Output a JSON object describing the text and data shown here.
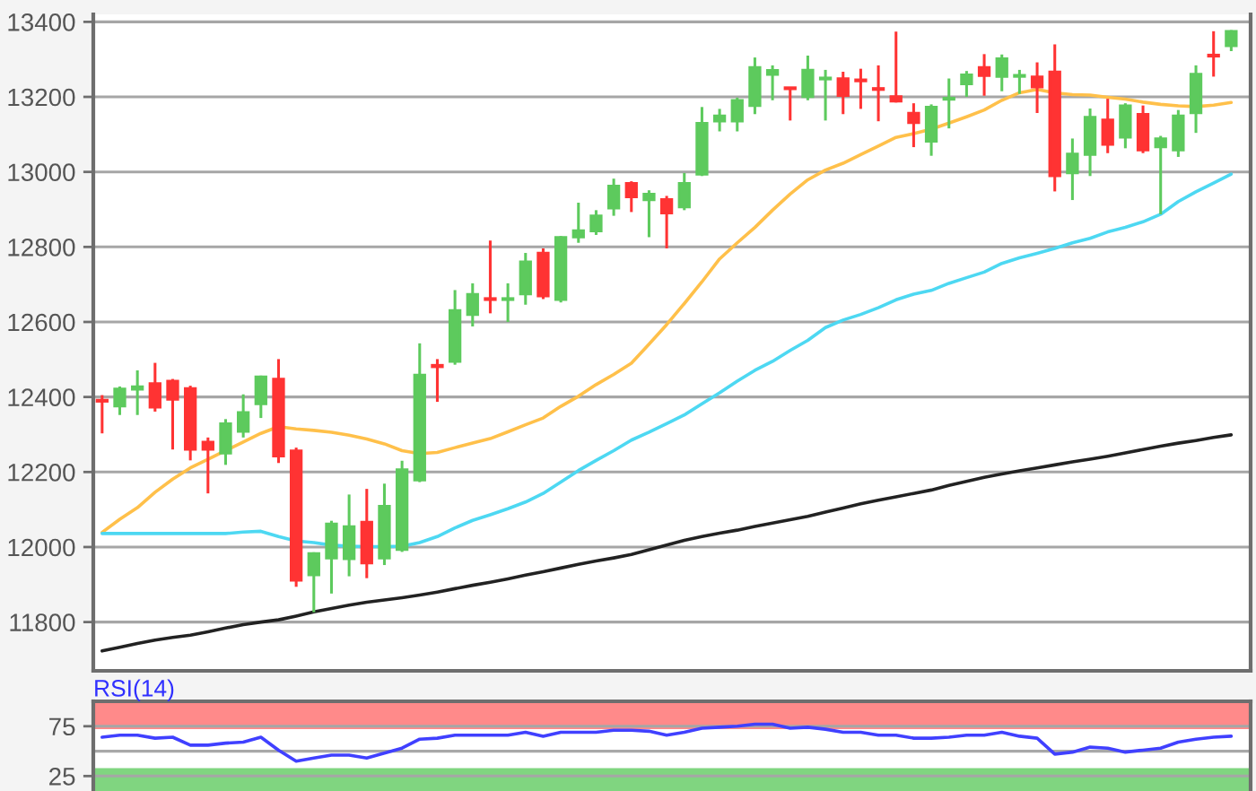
{
  "chart_data": [
    {
      "type": "candlestick",
      "categories": [
        null,
        null,
        null,
        null,
        null,
        null,
        null,
        null,
        null,
        null,
        null,
        null,
        null,
        null,
        null,
        null,
        null,
        null,
        null,
        null,
        null,
        null,
        null,
        null,
        null,
        null,
        null,
        null,
        null,
        null,
        null,
        null,
        null,
        null,
        null,
        null,
        null,
        null,
        null,
        null,
        null,
        null,
        null,
        null,
        null,
        null,
        null,
        null,
        null,
        null,
        null,
        null,
        null,
        null,
        null,
        null,
        null,
        null,
        null,
        null,
        null,
        null,
        null,
        null,
        null
      ],
      "ohlc": [
        [
          12392,
          12405,
          12303,
          12388
        ],
        [
          12375,
          12428,
          12352,
          12422
        ],
        [
          12420,
          12471,
          12352,
          12428
        ],
        [
          12436,
          12491,
          12361,
          12372
        ],
        [
          12443,
          12448,
          12260,
          12393
        ],
        [
          12423,
          12430,
          12231,
          12260
        ],
        [
          12280,
          12292,
          12143,
          12260
        ],
        [
          12250,
          12341,
          12219,
          12329
        ],
        [
          12308,
          12407,
          12292,
          12359
        ],
        [
          12381,
          12457,
          12344,
          12454
        ],
        [
          12448,
          12501,
          12224,
          12242
        ],
        [
          12257,
          12265,
          11894,
          11911
        ],
        [
          11925,
          11986,
          11826,
          11983
        ],
        [
          11970,
          12070,
          11876,
          12062
        ],
        [
          11968,
          12140,
          11922,
          12055
        ],
        [
          12067,
          12155,
          11917,
          11957
        ],
        [
          11970,
          12169,
          11952,
          12109
        ],
        [
          11993,
          12230,
          11987,
          12207
        ],
        [
          12178,
          12543,
          12173,
          12459
        ],
        [
          12485,
          12501,
          12387,
          12480
        ],
        [
          12494,
          12685,
          12486,
          12631
        ],
        [
          12619,
          12703,
          12588,
          12674
        ],
        [
          12663,
          12817,
          12623,
          12659
        ],
        [
          12659,
          12703,
          12600,
          12663
        ],
        [
          12674,
          12784,
          12646,
          12761
        ],
        [
          12784,
          12796,
          12661,
          12669
        ],
        [
          12659,
          12829,
          12652,
          12826
        ],
        [
          12826,
          12918,
          12811,
          12844
        ],
        [
          12842,
          12898,
          12832,
          12883
        ],
        [
          12903,
          12982,
          12883,
          12963
        ],
        [
          12970,
          12975,
          12893,
          12933
        ],
        [
          12925,
          12951,
          12826,
          12941
        ],
        [
          12927,
          12936,
          12796,
          12890
        ],
        [
          12906,
          12997,
          12898,
          12970
        ],
        [
          12993,
          13173,
          12989,
          13130
        ],
        [
          13135,
          13168,
          13108,
          13150
        ],
        [
          13135,
          13198,
          13108,
          13191
        ],
        [
          13176,
          13305,
          13154,
          13279
        ],
        [
          13259,
          13284,
          13191,
          13271
        ],
        [
          13225,
          13226,
          13137,
          13221
        ],
        [
          13200,
          13310,
          13191,
          13272
        ],
        [
          13247,
          13272,
          13137,
          13251
        ],
        [
          13249,
          13267,
          13154,
          13203
        ],
        [
          13246,
          13275,
          13168,
          13242
        ],
        [
          13223,
          13284,
          13135,
          13219
        ],
        [
          13201,
          13374,
          13185,
          13188
        ],
        [
          13157,
          13183,
          13066,
          13131
        ],
        [
          13081,
          13180,
          13043,
          13173
        ],
        [
          13193,
          13249,
          13116,
          13197
        ],
        [
          13234,
          13269,
          13200,
          13259
        ],
        [
          13279,
          13314,
          13203,
          13256
        ],
        [
          13254,
          13313,
          13215,
          13302
        ],
        [
          13254,
          13272,
          13208,
          13258
        ],
        [
          13254,
          13292,
          13157,
          13226
        ],
        [
          13267,
          13340,
          12948,
          12989
        ],
        [
          12997,
          13089,
          12925,
          13048
        ],
        [
          13046,
          13169,
          12989,
          13146
        ],
        [
          13139,
          13195,
          13050,
          13073
        ],
        [
          13092,
          13183,
          13063,
          13177
        ],
        [
          13154,
          13177,
          13050,
          13058
        ],
        [
          13066,
          13096,
          12887,
          13089
        ],
        [
          13058,
          13165,
          13040,
          13150
        ],
        [
          13157,
          13284,
          13104,
          13261
        ],
        [
          13312,
          13375,
          13254,
          13308
        ],
        [
          13336,
          13378,
          13322,
          13375
        ]
      ],
      "colors": [
        "#ff3333",
        "#5dca5d",
        "#5dca5d",
        "#ff3333",
        "#ff3333",
        "#ff3333",
        "#ff3333",
        "#5dca5d",
        "#5dca5d",
        "#5dca5d",
        "#ff3333",
        "#ff3333",
        "#5dca5d",
        "#5dca5d",
        "#5dca5d",
        "#ff3333",
        "#5dca5d",
        "#5dca5d",
        "#5dca5d",
        "#ff3333",
        "#5dca5d",
        "#5dca5d",
        "#ff3333",
        "#5dca5d",
        "#5dca5d",
        "#ff3333",
        "#5dca5d",
        "#5dca5d",
        "#5dca5d",
        "#5dca5d",
        "#ff3333",
        "#5dca5d",
        "#ff3333",
        "#5dca5d",
        "#5dca5d",
        "#5dca5d",
        "#5dca5d",
        "#5dca5d",
        "#5dca5d",
        "#ff3333",
        "#5dca5d",
        "#5dca5d",
        "#ff3333",
        "#ff3333",
        "#ff3333",
        "#ff3333",
        "#ff3333",
        "#5dca5d",
        "#5dca5d",
        "#5dca5d",
        "#ff3333",
        "#5dca5d",
        "#5dca5d",
        "#ff3333",
        "#ff3333",
        "#5dca5d",
        "#5dca5d",
        "#ff3333",
        "#5dca5d",
        "#ff3333",
        "#5dca5d",
        "#5dca5d",
        "#5dca5d",
        "#ff3333",
        "#5dca5d"
      ],
      "series": [
        {
          "type": "line",
          "color": "#ffc04a",
          "values": [
            12039,
            12074,
            12105,
            12146,
            12181,
            12211,
            12234,
            12257,
            12280,
            12303,
            12321,
            12315,
            12311,
            12306,
            12298,
            12288,
            12275,
            12257,
            12249,
            12252,
            12265,
            12277,
            12289,
            12307,
            12326,
            12344,
            12375,
            12402,
            12433,
            12460,
            12490,
            12541,
            12593,
            12649,
            12707,
            12768,
            12811,
            12852,
            12898,
            12941,
            12979,
            13005,
            13023,
            13046,
            13069,
            13092,
            13102,
            13114,
            13130,
            13147,
            13165,
            13191,
            13211,
            13220,
            13211,
            13206,
            13205,
            13199,
            13194,
            13186,
            13180,
            13176,
            13174,
            13178,
            13185
          ]
        },
        {
          "type": "line",
          "color": "#4dd8f2",
          "values": [
            12036,
            12036,
            12036,
            12036,
            12036,
            12036,
            12036,
            12036,
            12040,
            12042,
            12028,
            12016,
            12012,
            12005,
            12002,
            12001,
            12001,
            12002,
            12012,
            12028,
            12051,
            12071,
            12086,
            12102,
            12120,
            12143,
            12173,
            12204,
            12231,
            12257,
            12285,
            12306,
            12329,
            12352,
            12382,
            12411,
            12442,
            12471,
            12495,
            12524,
            12551,
            12585,
            12605,
            12620,
            12638,
            12659,
            12674,
            12684,
            12703,
            12718,
            12733,
            12756,
            12771,
            12783,
            12796,
            12811,
            12823,
            12840,
            12852,
            12867,
            12887,
            12921,
            12947,
            12970,
            12994
          ]
        },
        {
          "type": "line",
          "color": "#222222",
          "values": [
            11723,
            11733,
            11743,
            11752,
            11759,
            11765,
            11774,
            11784,
            11793,
            11800,
            11806,
            11816,
            11827,
            11836,
            11845,
            11853,
            11859,
            11865,
            11872,
            11880,
            11889,
            11898,
            11906,
            11915,
            11925,
            11934,
            11944,
            11954,
            11963,
            11971,
            11980,
            11993,
            12005,
            12018,
            12028,
            12037,
            12045,
            12055,
            12064,
            12073,
            12082,
            12093,
            12104,
            12115,
            12125,
            12134,
            12143,
            12152,
            12164,
            12175,
            12186,
            12195,
            12203,
            12211,
            12219,
            12227,
            12234,
            12242,
            12251,
            12260,
            12269,
            12277,
            12284,
            12292,
            12299
          ]
        }
      ],
      "ylim": [
        11670,
        13420
      ],
      "yticks": [
        11800,
        12000,
        12200,
        12400,
        12600,
        12800,
        13000,
        13200,
        13400
      ],
      "grid": "y",
      "tick_labels": "y"
    },
    {
      "type": "line",
      "title": "RSI(14)",
      "categories": [
        null,
        null,
        null,
        null,
        null,
        null,
        null,
        null,
        null,
        null,
        null,
        null,
        null,
        null,
        null,
        null,
        null,
        null,
        null,
        null,
        null,
        null,
        null,
        null,
        null,
        null,
        null,
        null,
        null,
        null,
        null,
        null,
        null,
        null,
        null,
        null,
        null,
        null,
        null,
        null,
        null,
        null,
        null,
        null,
        null,
        null,
        null,
        null,
        null,
        null,
        null,
        null,
        null,
        null,
        null,
        null,
        null,
        null,
        null,
        null,
        null,
        null,
        null,
        null,
        null
      ],
      "series": [
        {
          "color": "#4040ff",
          "values": [
            64,
            66,
            66,
            63,
            64,
            56,
            56,
            58,
            59,
            64,
            51,
            40,
            43,
            46,
            46,
            43,
            48,
            53,
            62,
            63,
            66,
            66,
            66,
            66,
            69,
            65,
            69,
            69,
            69,
            71,
            71,
            70,
            66,
            69,
            73,
            74,
            75,
            77,
            77,
            73,
            74,
            72,
            69,
            69,
            66,
            66,
            63,
            63,
            64,
            66,
            66,
            69,
            65,
            63,
            47,
            49,
            54,
            53,
            49,
            51,
            53,
            59,
            62,
            64,
            65
          ]
        }
      ],
      "ylim": [
        10,
        100
      ],
      "yticks": [
        75,
        25
      ],
      "bands": [
        {
          "axis": "y",
          "from": 72,
          "to": 100,
          "color": "#ff8a8a"
        },
        {
          "axis": "y",
          "from": 10,
          "to": 33,
          "color": "#80d580"
        }
      ],
      "ref_lines": [
        {
          "axis": "y",
          "value": 50,
          "color": "#a8a8a8"
        }
      ],
      "grid": "y",
      "tick_labels": "y"
    }
  ]
}
